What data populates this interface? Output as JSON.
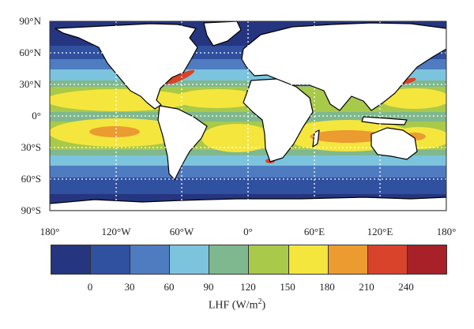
{
  "map": {
    "lat_labels": [
      "90°N",
      "60°N",
      "30°N",
      "0°",
      "30°S",
      "60°S",
      "90°S"
    ],
    "lon_labels": [
      "180°",
      "120°W",
      "60°W",
      "0°",
      "60°E",
      "120°E",
      "180°"
    ],
    "colors": {
      "ocean_deep": "#2b3a8c",
      "land": "#ffffff",
      "coast": "#000000",
      "grid": "#ffffff"
    }
  },
  "colorbar": {
    "colors": [
      "#263580",
      "#3050a0",
      "#4f7cc0",
      "#7cc4dd",
      "#7fb88e",
      "#a8c94a",
      "#f5e63e",
      "#eb9b2f",
      "#d8432b",
      "#a82128"
    ],
    "tick_labels": [
      "0",
      "30",
      "60",
      "90",
      "120",
      "150",
      "180",
      "210",
      "240"
    ],
    "title_main": "LHF (W/m",
    "title_sup": "2",
    "title_end": ")"
  }
}
